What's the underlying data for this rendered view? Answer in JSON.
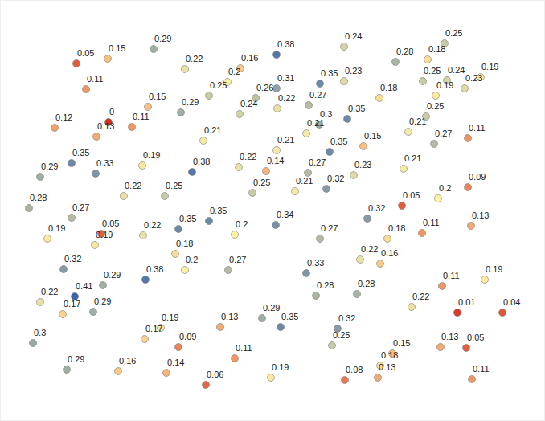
{
  "chart_data": {
    "type": "scatter",
    "x": [
      191,
      344,
      428,
      553,
      492,
      95,
      134,
      532,
      230,
      299,
      598,
      526,
      556,
      283,
      107,
      398,
      428,
      344,
      318,
      260,
      542,
      578,
      472,
      384,
      345,
      298,
      184,
      225,
      135,
      68,
      164,
      120,
      397,
      432,
      530,
      508,
      381,
      253,
      344,
      410,
      452,
      540,
      582,
      89,
      119,
      50,
      177,
      239,
      297,
      331,
      383,
      440,
      502,
      582,
      154,
      205,
      314,
      367,
      406,
      545,
      36,
      89,
      500,
      457,
      260,
      222,
      343,
      126,
      59,
      118,
      178,
      292,
      398,
      482,
      525,
      586,
      218,
      230,
      284,
      448,
      473,
      79,
      381,
      181,
      128,
      93,
      603,
      550,
      393,
      444,
      50,
      78,
      116,
      512,
      569,
      625,
      326,
      349,
      420,
      200,
      274,
      180,
      222,
      41,
      413,
      548,
      580,
      488,
      473,
      292,
      83,
      147,
      207,
      256,
      337,
      429,
      470,
      587
    ],
    "values": [
      463,
      456,
      466,
      470,
      447,
      445,
      451,
      450,
      438,
      439,
      428,
      423,
      424,
      422,
      413,
      420,
      423,
      414,
      402,
      405,
      405,
      414,
      402,
      393,
      389,
      382,
      391,
      384,
      372,
      365,
      366,
      354,
      369,
      376,
      379,
      360,
      358,
      349,
      337,
      335,
      342,
      345,
      352,
      321,
      308,
      304,
      318,
      310,
      316,
      311,
      309,
      306,
      314,
      291,
      280,
      280,
      284,
      286,
      289,
      277,
      265,
      253,
      268,
      252,
      249,
      239,
      244,
      233,
      227,
      219,
      231,
      232,
      227,
      227,
      234,
      243,
      208,
      188,
      188,
      201,
      196,
      189,
      184,
      176,
      169,
      155,
      176,
      168,
      156,
      158,
      148,
      133,
      136,
      142,
      135,
      135,
      128,
      117,
      115,
      116,
      117,
      102,
      92,
      97,
      94,
      92,
      91,
      84,
      69,
      78,
      64,
      62,
      60,
      45,
      54,
      51,
      54,
      52
    ],
    "point_values": [
      0.29,
      0.38,
      0.24,
      0.25,
      0.28,
      0.05,
      0.15,
      0.18,
      0.22,
      0.16,
      0.19,
      0.25,
      0.24,
      0.2,
      0.11,
      0.35,
      0.23,
      0.31,
      0.26,
      0.25,
      0.19,
      0.23,
      0.18,
      0.27,
      0.22,
      0.24,
      0.15,
      0.29,
      0,
      0.12,
      0.11,
      0.13,
      0.3,
      0.35,
      0.25,
      0.21,
      0.21,
      0.21,
      0.21,
      0.35,
      0.15,
      0.27,
      0.11,
      0.35,
      0.33,
      0.29,
      0.19,
      0.38,
      0.22,
      0.14,
      0.27,
      0.23,
      0.21,
      0.09,
      0.22,
      0.25,
      0.25,
      0.21,
      0.32,
      0.2,
      0.28,
      0.27,
      0.05,
      0.32,
      0.35,
      0.35,
      0.34,
      0.05,
      0.19,
      0.19,
      0.22,
      0.2,
      0.27,
      0.18,
      0.11,
      0.13,
      0.18,
      0.2,
      0.27,
      0.22,
      0.16,
      0.32,
      0.33,
      0.38,
      0.29,
      0.41,
      0.19,
      0.11,
      0.28,
      0.28,
      0.22,
      0.17,
      0.29,
      0.22,
      0.01,
      0.04,
      0.29,
      0.35,
      0.32,
      0.19,
      0.13,
      0.17,
      0.09,
      0.3,
      0.25,
      0.13,
      0.05,
      0.15,
      0.18,
      0.11,
      0.29,
      0.16,
      0.14,
      0.06,
      0.19,
      0.08,
      0.13,
      0.11
    ],
    "color_scale": {
      "domain": [
        0,
        0.1,
        0.2,
        0.28,
        0.41
      ],
      "colors": [
        "#d7301f",
        "#f08c5c",
        "#fdf2a6",
        "#a9b4a2",
        "#3c64ad"
      ]
    },
    "xlim": [
      0,
      678
    ],
    "ylim": [
      0,
      524
    ],
    "marker": "circle",
    "data_labels": true,
    "tick_labels": false
  }
}
